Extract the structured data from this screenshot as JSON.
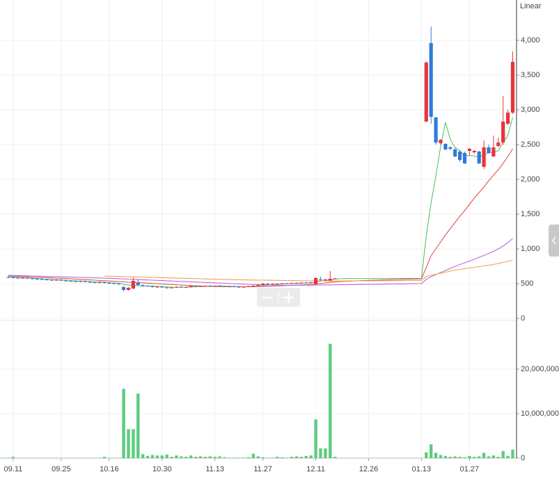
{
  "chart_data": {
    "type": "candlestick",
    "scale": "Linear",
    "categories": [
      null,
      "09.11",
      null,
      null,
      null,
      null,
      null,
      null,
      null,
      null,
      null,
      "09.25",
      null,
      null,
      null,
      null,
      null,
      null,
      null,
      null,
      null,
      "10.16",
      null,
      null,
      null,
      null,
      null,
      null,
      null,
      null,
      null,
      null,
      "10.30",
      null,
      null,
      null,
      null,
      null,
      null,
      null,
      null,
      null,
      null,
      "11.13",
      null,
      null,
      null,
      null,
      null,
      null,
      null,
      null,
      null,
      "11.27",
      null,
      null,
      null,
      null,
      null,
      null,
      null,
      null,
      null,
      null,
      "12.11",
      null,
      null,
      null,
      null,
      null,
      null,
      null,
      null,
      null,
      null,
      "12.26",
      null,
      null,
      null,
      null,
      null,
      null,
      null,
      null,
      null,
      null,
      "01.13",
      null,
      null,
      null,
      null,
      null,
      null,
      null,
      null,
      null,
      "01.27",
      null,
      null,
      null,
      null,
      null,
      null,
      null,
      null,
      null
    ],
    "open": [
      595,
      590,
      585,
      580,
      585,
      575,
      570,
      565,
      560,
      555,
      550,
      555,
      545,
      540,
      535,
      530,
      535,
      525,
      520,
      515,
      520,
      510,
      505,
      500,
      450,
      410,
      430,
      510,
      480,
      470,
      460,
      450,
      455,
      445,
      440,
      445,
      455,
      445,
      450,
      465,
      460,
      465,
      470,
      465,
      470,
      465,
      455,
      460,
      455,
      450,
      455,
      465,
      470,
      480,
      500,
      490,
      500,
      495,
      505,
      500,
      510,
      505,
      515,
      510,
      490,
      560,
      550,
      545,
      570,
      null,
      null,
      null,
      null,
      null,
      null,
      null,
      null,
      null,
      null,
      null,
      null,
      null,
      null,
      null,
      null,
      null,
      null,
      2830,
      3960,
      2890,
      2520,
      2510,
      2460,
      2430,
      2400,
      2380,
      2410,
      2390,
      2400,
      2180,
      2460,
      2330,
      2480,
      2530,
      2800,
      2960
    ],
    "high": [
      605,
      600,
      595,
      595,
      595,
      585,
      580,
      575,
      570,
      565,
      565,
      565,
      555,
      550,
      545,
      545,
      545,
      535,
      530,
      530,
      530,
      520,
      515,
      510,
      470,
      450,
      590,
      560,
      490,
      480,
      470,
      465,
      460,
      455,
      450,
      460,
      465,
      455,
      470,
      475,
      470,
      475,
      480,
      475,
      480,
      470,
      465,
      470,
      465,
      460,
      470,
      480,
      490,
      510,
      510,
      505,
      510,
      510,
      515,
      515,
      520,
      520,
      525,
      525,
      590,
      600,
      570,
      680,
      580,
      null,
      null,
      null,
      null,
      null,
      null,
      null,
      null,
      null,
      null,
      null,
      null,
      null,
      null,
      null,
      null,
      null,
      null,
      3700,
      4200,
      2900,
      2580,
      2520,
      2480,
      2450,
      2420,
      2400,
      2450,
      2420,
      2410,
      2560,
      2500,
      2630,
      2600,
      3200,
      3000,
      3840
    ],
    "low": [
      580,
      575,
      570,
      570,
      565,
      560,
      555,
      550,
      545,
      540,
      540,
      535,
      530,
      525,
      520,
      520,
      515,
      510,
      505,
      505,
      500,
      495,
      490,
      485,
      390,
      400,
      420,
      470,
      460,
      455,
      445,
      440,
      440,
      430,
      430,
      435,
      440,
      435,
      445,
      455,
      450,
      455,
      460,
      455,
      460,
      450,
      445,
      450,
      440,
      440,
      450,
      455,
      465,
      470,
      485,
      480,
      490,
      490,
      495,
      495,
      500,
      500,
      505,
      505,
      480,
      540,
      535,
      540,
      560,
      null,
      null,
      null,
      null,
      null,
      null,
      null,
      null,
      null,
      null,
      null,
      null,
      null,
      null,
      null,
      null,
      null,
      null,
      2830,
      2800,
      2500,
      2500,
      2420,
      2420,
      2320,
      2250,
      2220,
      2350,
      2370,
      2220,
      2150,
      2370,
      2320,
      2460,
      2500,
      2780,
      2940
    ],
    "close": [
      590,
      585,
      580,
      585,
      575,
      570,
      565,
      560,
      555,
      550,
      555,
      545,
      540,
      535,
      530,
      535,
      525,
      520,
      515,
      520,
      510,
      505,
      500,
      495,
      410,
      440,
      540,
      480,
      470,
      460,
      450,
      455,
      445,
      440,
      445,
      455,
      445,
      450,
      465,
      460,
      465,
      470,
      465,
      470,
      465,
      455,
      460,
      455,
      450,
      455,
      465,
      470,
      480,
      500,
      490,
      500,
      495,
      505,
      500,
      510,
      505,
      515,
      510,
      520,
      580,
      550,
      560,
      570,
      575,
      null,
      null,
      null,
      null,
      null,
      null,
      null,
      null,
      null,
      null,
      null,
      null,
      null,
      null,
      null,
      null,
      null,
      null,
      3680,
      2900,
      2530,
      2570,
      2430,
      2440,
      2330,
      2280,
      2230,
      2440,
      2410,
      2230,
      2460,
      2380,
      2460,
      2530,
      2830,
      2960,
      3690
    ],
    "up_color": "#e8343e",
    "down_color": "#2f7bd8",
    "ylim": [
      0,
      4500
    ],
    "yticks": [
      0,
      500,
      {
        "value": 1000,
        "label": "1,000"
      },
      {
        "value": 1500,
        "label": "1,500"
      },
      {
        "value": 2000,
        "label": "2,000"
      },
      {
        "value": 2500,
        "label": "2,500"
      },
      {
        "value": 3000,
        "label": "3,000"
      },
      {
        "value": 3500,
        "label": "3,500"
      },
      {
        "value": 4000,
        "label": "4,000"
      }
    ],
    "grid": true,
    "moving_averages": [
      {
        "color": "#55c46b",
        "values": [
          595,
          592,
          588,
          585,
          582,
          578,
          574,
          569,
          565,
          560,
          557,
          553,
          549,
          545,
          541,
          537,
          533,
          529,
          525,
          523,
          520,
          515,
          510,
          506,
          490,
          482,
          476,
          470,
          460,
          465,
          468,
          462,
          458,
          452,
          448,
          447,
          448,
          449,
          452,
          455,
          457,
          460,
          463,
          465,
          467,
          464,
          462,
          460,
          457,
          454,
          455,
          458,
          463,
          470,
          478,
          485,
          493,
          498,
          500,
          502,
          503,
          507,
          508,
          510,
          525,
          537,
          547,
          554,
          566,
          570,
          572,
          574,
          575,
          575,
          575,
          575,
          575,
          575,
          575,
          575,
          575,
          575,
          575,
          575,
          575,
          575,
          575,
          1190,
          1658,
          2050,
          2476,
          2822,
          2574,
          2460,
          2410,
          2342,
          2344,
          2338,
          2318,
          2354,
          2384,
          2388,
          2412,
          2532,
          2632,
          2894
        ]
      },
      {
        "color": "#e55050",
        "values": [
          610,
          607,
          604,
          601,
          598,
          595,
          592,
          589,
          586,
          583,
          580,
          577,
          574,
          570,
          566,
          562,
          558,
          554,
          550,
          546,
          542,
          538,
          534,
          530,
          525,
          520,
          518,
          516,
          512,
          508,
          504,
          500,
          496,
          492,
          488,
          484,
          480,
          476,
          472,
          469,
          466,
          463,
          460,
          459,
          458,
          457,
          456,
          455,
          455,
          455,
          456,
          457,
          458,
          460,
          462,
          464,
          467,
          470,
          473,
          476,
          479,
          482,
          485,
          488,
          495,
          502,
          510,
          518,
          525,
          530,
          533,
          536,
          539,
          542,
          545,
          548,
          550,
          552,
          554,
          556,
          558,
          560,
          562,
          564,
          566,
          568,
          570,
          730,
          900,
          1000,
          1100,
          1200,
          1290,
          1380,
          1470,
          1550,
          1640,
          1730,
          1810,
          1890,
          1980,
          2060,
          2140,
          2230,
          2330,
          2440
        ]
      },
      {
        "color": "#b469e6",
        "values": [
          620,
          618,
          616,
          614,
          612,
          610,
          608,
          606,
          604,
          602,
          600,
          598,
          596,
          594,
          592,
          590,
          588,
          586,
          584,
          582,
          580,
          577,
          574,
          571,
          568,
          565,
          562,
          559,
          556,
          553,
          550,
          547,
          544,
          541,
          538,
          535,
          532,
          529,
          526,
          523,
          520,
          517,
          514,
          511,
          508,
          505,
          502,
          499,
          496,
          493,
          490,
          488,
          486,
          484,
          482,
          480,
          479,
          478,
          477,
          477,
          477,
          477,
          478,
          478,
          479,
          480,
          481,
          482,
          483,
          484,
          485,
          486,
          487,
          488,
          489,
          490,
          491,
          492,
          493,
          494,
          495,
          496,
          497,
          498,
          499,
          500,
          501,
          560,
          600,
          630,
          660,
          690,
          720,
          750,
          775,
          800,
          825,
          850,
          880,
          905,
          935,
          965,
          1000,
          1040,
          1090,
          1150
        ]
      },
      {
        "color": "#f0a050",
        "values": [
          null,
          null,
          null,
          null,
          null,
          null,
          null,
          null,
          null,
          null,
          null,
          null,
          null,
          null,
          null,
          null,
          null,
          null,
          null,
          null,
          610,
          608,
          606,
          604,
          602,
          600,
          598,
          596,
          594,
          592,
          590,
          588,
          586,
          584,
          582,
          580,
          578,
          576,
          574,
          572,
          570,
          568,
          566,
          564,
          562,
          560,
          558,
          556,
          555,
          554,
          553,
          552,
          551,
          550,
          549,
          548,
          547,
          546,
          545,
          544,
          543,
          542,
          541,
          540,
          540,
          539,
          539,
          538,
          538,
          538,
          538,
          539,
          539,
          540,
          540,
          541,
          541,
          542,
          542,
          543,
          543,
          544,
          544,
          545,
          545,
          546,
          546,
          600,
          620,
          635,
          650,
          665,
          680,
          695,
          705,
          715,
          725,
          735,
          745,
          755,
          765,
          775,
          790,
          805,
          820,
          840
        ]
      }
    ],
    "volume": {
      "color": "#5ccc80",
      "values": [
        100000,
        300000,
        50000,
        40000,
        50000,
        40000,
        60000,
        50000,
        40000,
        50000,
        60000,
        50000,
        40000,
        50000,
        40000,
        50000,
        60000,
        50000,
        40000,
        50000,
        300000,
        50000,
        60000,
        50000,
        15600000,
        6500000,
        6500000,
        14500000,
        900000,
        500000,
        700000,
        600000,
        600000,
        800000,
        300000,
        600000,
        400000,
        300000,
        600000,
        300000,
        400000,
        300000,
        400000,
        300000,
        400000,
        200000,
        100000,
        100000,
        100000,
        100000,
        200000,
        1000000,
        400000,
        200000,
        100000,
        100000,
        300000,
        200000,
        100000,
        300000,
        400000,
        300000,
        500000,
        600000,
        8700000,
        2200000,
        2200000,
        25700000,
        300000,
        null,
        null,
        null,
        null,
        null,
        null,
        null,
        null,
        null,
        null,
        null,
        null,
        null,
        null,
        null,
        null,
        null,
        null,
        1300000,
        3100000,
        1200000,
        700000,
        500000,
        300000,
        400000,
        300000,
        200000,
        500000,
        300000,
        400000,
        1200000,
        400000,
        600000,
        300000,
        1600000,
        500000,
        1900000
      ],
      "ylim": [
        0,
        30000000
      ],
      "yticks": [
        0,
        {
          "value": 10000000,
          "label": "10,000,000"
        },
        {
          "value": 20000000,
          "label": "20,000,000"
        }
      ]
    }
  }
}
